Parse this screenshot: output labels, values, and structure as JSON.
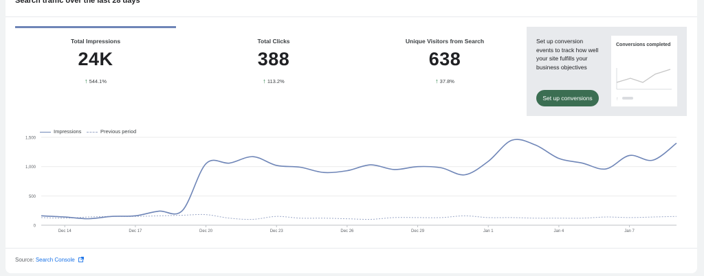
{
  "header": {
    "title": "Search traffic over the last 28 days"
  },
  "metrics": [
    {
      "label": "Total Impressions",
      "value": "24K",
      "change": "544.1%",
      "direction": "up"
    },
    {
      "label": "Total Clicks",
      "value": "388",
      "change": "113.2%",
      "direction": "up"
    },
    {
      "label": "Unique Visitors from Search",
      "value": "638",
      "change": "37.8%",
      "direction": "up"
    }
  ],
  "promo": {
    "text": "Set up conversion events to track how well your site fulfills your business objectives",
    "button_label": "Set up conversions",
    "mini_card_title": "Conversions completed"
  },
  "legend": {
    "current": "Impressions",
    "previous": "Previous period"
  },
  "colors": {
    "current": "#6e85b7",
    "previous": "#9aa7c7",
    "button": "#3b6e52",
    "link": "#1a73e8"
  },
  "chart_data": {
    "type": "line",
    "ylim": [
      0,
      1500
    ],
    "y_ticks": [
      "1,500",
      "1,000",
      "500",
      "0"
    ],
    "y_tick_values": [
      1500,
      1000,
      500,
      0
    ],
    "x_tick_labels": [
      "Dec 14",
      "Dec 17",
      "Dec 20",
      "Dec 23",
      "Dec 26",
      "Dec 29",
      "Jan 1",
      "Jan 4",
      "Jan 7"
    ],
    "x_tick_indices": [
      1,
      4,
      7,
      10,
      13,
      16,
      19,
      22,
      25
    ],
    "series": [
      {
        "name": "Impressions",
        "values": [
          160,
          140,
          110,
          150,
          160,
          240,
          250,
          1050,
          1060,
          1170,
          1020,
          990,
          900,
          930,
          1030,
          950,
          1000,
          980,
          860,
          1090,
          1450,
          1370,
          1140,
          1060,
          960,
          1190,
          1110,
          1400
        ]
      },
      {
        "name": "Previous period",
        "values": [
          130,
          120,
          140,
          150,
          150,
          160,
          170,
          180,
          120,
          100,
          150,
          120,
          120,
          110,
          100,
          130,
          130,
          130,
          160,
          130,
          130,
          120,
          120,
          120,
          140,
          130,
          140,
          150
        ]
      }
    ]
  },
  "footer": {
    "source_prefix": "Source:",
    "source_link": "Search Console",
    "external_icon": "external-link-icon"
  }
}
